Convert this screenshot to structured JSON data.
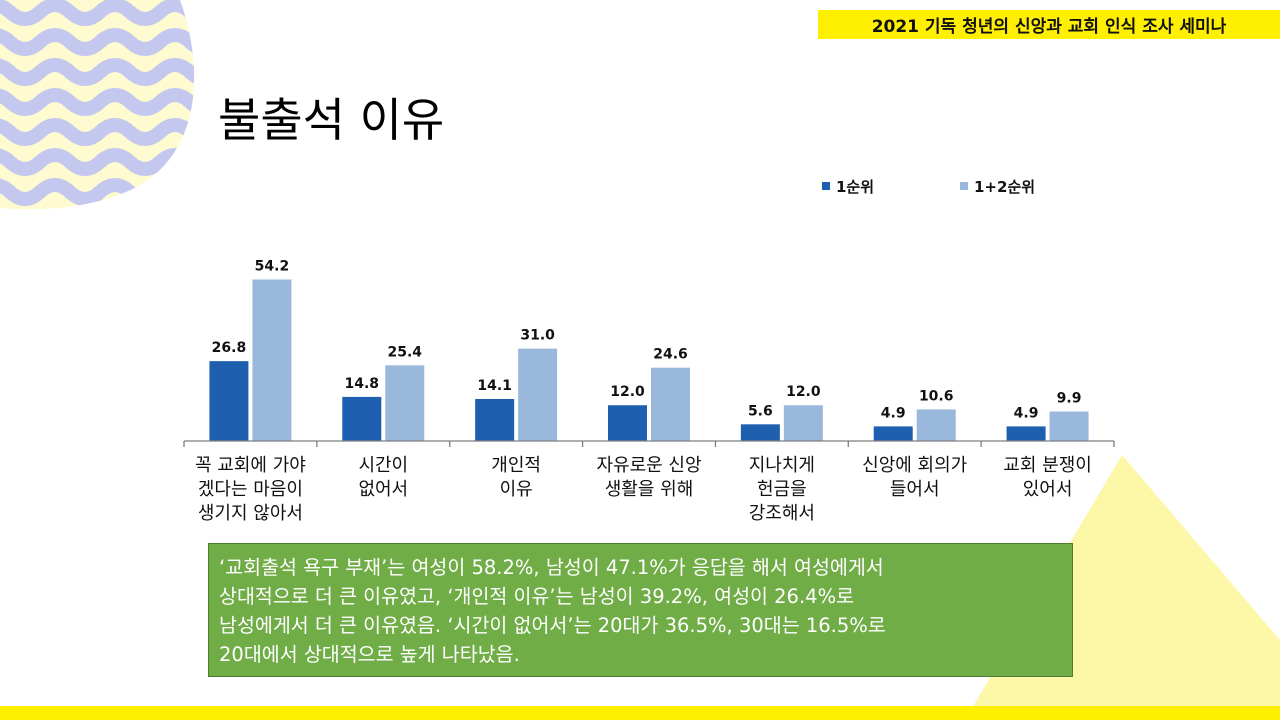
{
  "header": {
    "banner": "2021 기독 청년의 신앙과 교회 인식 조사 세미나"
  },
  "slide": {
    "title": "불출석 이유"
  },
  "colors": {
    "series1": "#1f5faf",
    "series2": "#9ab8dc",
    "summary_bg": "#70ad47",
    "accent_yellow": "#ffef00",
    "wave_color": "#c5c8ee"
  },
  "chart_data": {
    "type": "bar",
    "title": "",
    "xlabel": "",
    "ylabel": "",
    "ylim": [
      0,
      60
    ],
    "legend_position": "top-right",
    "categories": [
      [
        "꼭 교회에 가야",
        "겠다는 마음이",
        "생기지 않아서"
      ],
      [
        "시간이",
        "없어서"
      ],
      [
        "개인적",
        "이유"
      ],
      [
        "자유로운 신앙",
        "생활을 위해"
      ],
      [
        "지나치게",
        "헌금을",
        "강조해서"
      ],
      [
        "신앙에 회의가",
        "들어서"
      ],
      [
        "교회 분쟁이",
        "있어서"
      ]
    ],
    "series": [
      {
        "name": "1순위",
        "values": [
          26.8,
          14.8,
          14.1,
          12.0,
          5.6,
          4.9,
          4.9
        ]
      },
      {
        "name": "1+2순위",
        "values": [
          54.2,
          25.4,
          31.0,
          24.6,
          12.0,
          10.6,
          9.9
        ]
      }
    ]
  },
  "summary": {
    "lines": [
      "‘교회출석 욕구 부재’는 여성이 58.2%, 남성이 47.1%가 응답을 해서 여성에게서",
      "상대적으로 더 큰 이유였고, ‘개인적 이유’는 남성이 39.2%, 여성이 26.4%로",
      "남성에게서 더 큰 이유였음. ‘시간이 없어서’는 20대가 36.5%, 30대는 16.5%로",
      "20대에서 상대적으로 높게 나타났음."
    ]
  }
}
